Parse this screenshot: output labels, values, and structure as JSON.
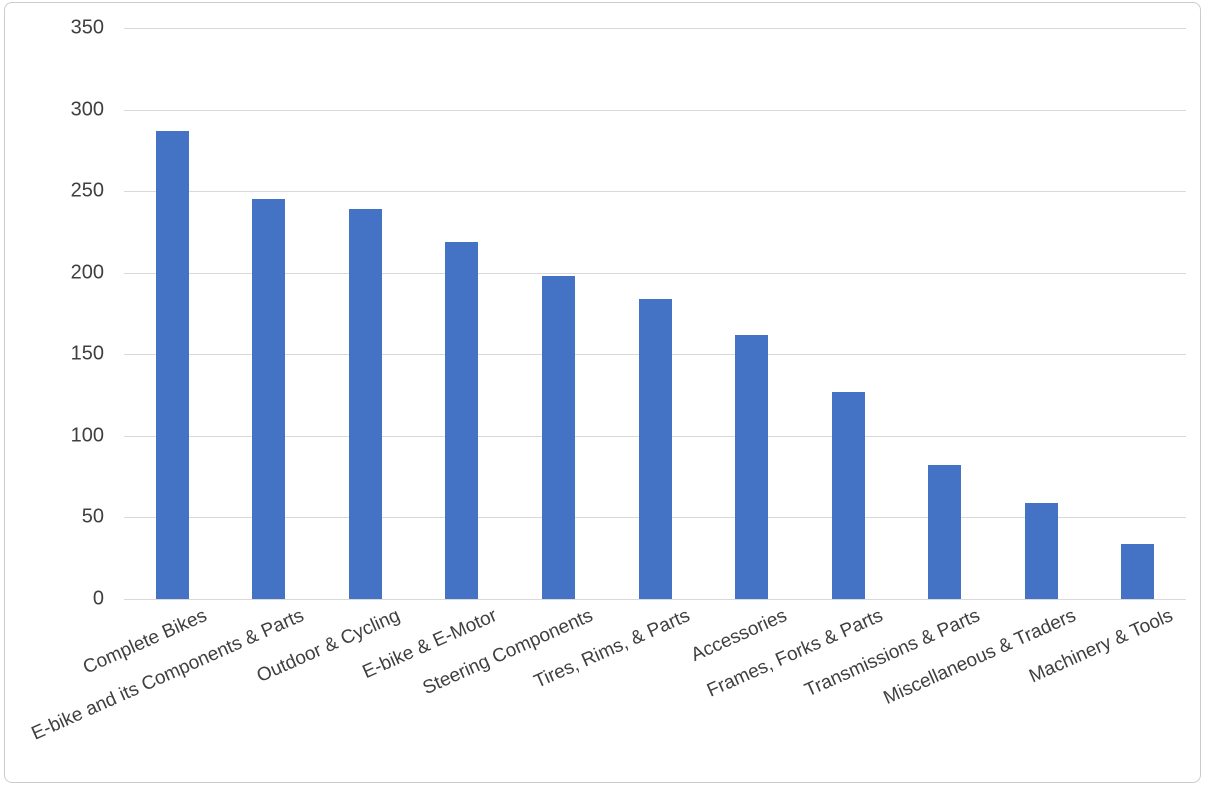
{
  "chart_data": {
    "type": "bar",
    "title": "",
    "xlabel": "",
    "ylabel": "",
    "categories": [
      "Complete Bikes",
      "E-bike and its Components & Parts",
      "Outdoor & Cycling",
      "E-bike & E-Motor",
      "Steering Components",
      "Tires, Rims, & Parts",
      "Accessories",
      "Frames, Forks & Parts",
      "Transmissions & Parts",
      "Miscellaneous & Traders",
      "Machinery & Tools"
    ],
    "values": [
      287,
      245,
      239,
      219,
      198,
      184,
      162,
      127,
      82,
      59,
      34
    ],
    "ylim": [
      0,
      350
    ],
    "yticks": [
      0,
      50,
      100,
      150,
      200,
      250,
      300,
      350
    ],
    "ytick_step": 50,
    "grid": true,
    "legend": "none",
    "x_label_rotation_deg": -24,
    "colors": {
      "bar": "#4472c4",
      "gridline": "#d9d9d9",
      "axis_label": "#3f3f3f",
      "frame_border": "#cccccc",
      "background": "#ffffff"
    }
  }
}
